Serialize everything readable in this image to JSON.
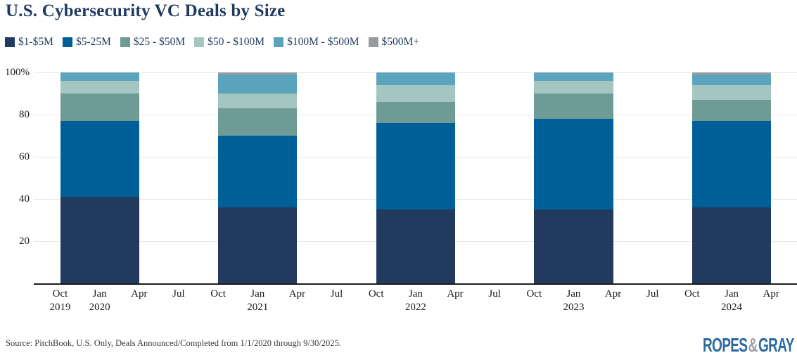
{
  "header": {
    "title": "U.S. Cybersecurity VC Deals by Size"
  },
  "footer": {
    "source": "Source: PitchBook, U.S. Only, Deals Announced/Completed from 1/1/2020 through 9/30/2025.",
    "logo": {
      "ropes": "ROPES",
      "amp": "&",
      "gray": "GRAY"
    }
  },
  "chart_data": {
    "type": "bar",
    "stacked": true,
    "unit": "percent of deals",
    "title": "U.S. Cybersecurity VC Deals by Size",
    "ylim": [
      0,
      100
    ],
    "yticks": [
      20,
      40,
      60,
      80,
      100
    ],
    "ytick_labels": [
      "20",
      "40",
      "60",
      "80",
      "100%"
    ],
    "grid": true,
    "legend_position": "top",
    "x_ticks": [
      {
        "month": "Oct",
        "year": "2019"
      },
      {
        "month": "Jan",
        "year": "2020"
      },
      {
        "month": "Apr"
      },
      {
        "month": "Jul"
      },
      {
        "month": "Oct"
      },
      {
        "month": "Jan",
        "year": "2021"
      },
      {
        "month": "Apr"
      },
      {
        "month": "Jul"
      },
      {
        "month": "Oct"
      },
      {
        "month": "Jan",
        "year": "2022"
      },
      {
        "month": "Apr"
      },
      {
        "month": "Jul"
      },
      {
        "month": "Oct"
      },
      {
        "month": "Jan",
        "year": "2023"
      },
      {
        "month": "Apr"
      },
      {
        "month": "Jul"
      },
      {
        "month": "Oct"
      },
      {
        "month": "Jan",
        "year": "2024"
      },
      {
        "month": "Apr"
      }
    ],
    "bar_groups": [
      {
        "label": "Oct 2019 - Apr 2020",
        "tick_start": 0,
        "tick_end": 2
      },
      {
        "label": "Oct 2020 - Apr 2021",
        "tick_start": 4,
        "tick_end": 6
      },
      {
        "label": "Oct 2021 - Apr 2022",
        "tick_start": 8,
        "tick_end": 10
      },
      {
        "label": "Oct 2022 - Apr 2023",
        "tick_start": 12,
        "tick_end": 14
      },
      {
        "label": "Oct 2023 - Apr 2024",
        "tick_start": 16,
        "tick_end": 18
      }
    ],
    "series": [
      {
        "name": "$1-$5M",
        "color": "#223a5e",
        "values": [
          41,
          36,
          35,
          35,
          36
        ]
      },
      {
        "name": "$5-25M",
        "color": "#005f96",
        "values": [
          36,
          34,
          41,
          43,
          41
        ]
      },
      {
        "name": "$25 - $50M",
        "color": "#6f9b97",
        "values": [
          13,
          13,
          10,
          12,
          10
        ]
      },
      {
        "name": "$50 - $100M",
        "color": "#a3c7c0",
        "values": [
          6,
          7,
          8,
          6,
          7
        ]
      },
      {
        "name": "$100M - $500M",
        "color": "#5aa4bd",
        "values": [
          4,
          9,
          6,
          4,
          5
        ]
      },
      {
        "name": "$500M+",
        "color": "#989b9b",
        "values": [
          0,
          1,
          0,
          0,
          1
        ]
      }
    ],
    "axis_color": "#1c1c1c",
    "gridline_color": "#e8e8e8"
  }
}
